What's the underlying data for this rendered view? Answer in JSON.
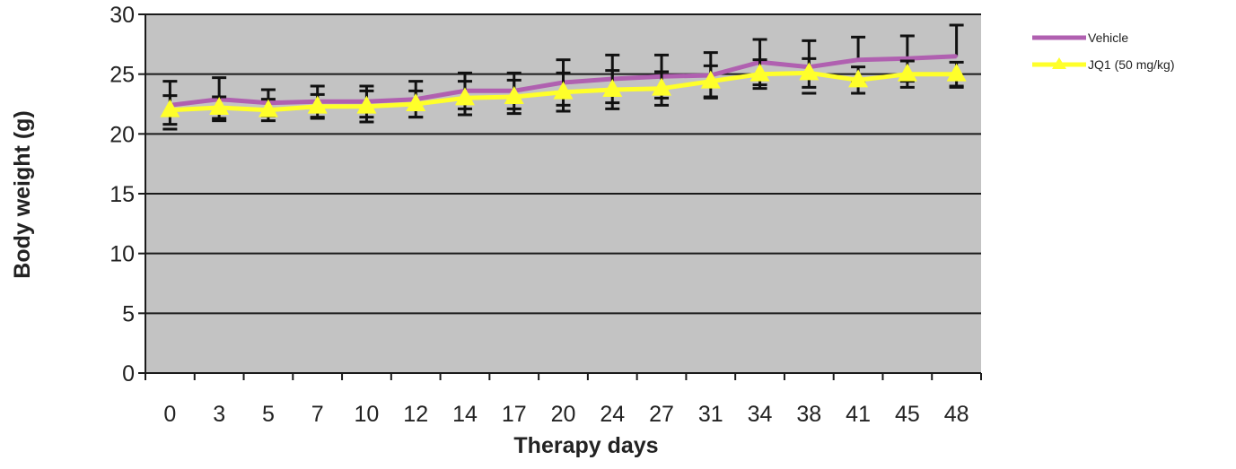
{
  "chart_data": {
    "type": "line",
    "title": "",
    "xlabel": "Therapy days",
    "ylabel": "Body weight (g)",
    "categories": [
      "0",
      "3",
      "5",
      "7",
      "10",
      "12",
      "14",
      "17",
      "20",
      "24",
      "27",
      "31",
      "34",
      "38",
      "41",
      "45",
      "48"
    ],
    "ylim": [
      0,
      30
    ],
    "yticks": [
      "0",
      "5",
      "10",
      "15",
      "20",
      "25",
      "30"
    ],
    "grid": true,
    "legend_position": "right",
    "series": [
      {
        "name": "Vehicle",
        "color": "#b060b0",
        "marker": "none",
        "values": [
          22.4,
          22.9,
          22.6,
          22.7,
          22.7,
          22.9,
          23.6,
          23.6,
          24.3,
          24.6,
          24.8,
          24.9,
          26.0,
          25.6,
          26.2,
          26.3,
          26.5
        ],
        "error": [
          2.0,
          1.8,
          1.1,
          1.3,
          1.3,
          1.5,
          1.5,
          1.5,
          1.9,
          2.0,
          1.8,
          1.9,
          1.9,
          2.2,
          1.9,
          1.9,
          2.6
        ]
      },
      {
        "name": "JQ1 (50 mg/kg)",
        "color": "#ffff2a",
        "marker": "triangle",
        "values": [
          22.0,
          22.2,
          22.0,
          22.3,
          22.3,
          22.5,
          23.0,
          23.1,
          23.5,
          23.7,
          23.8,
          24.4,
          25.0,
          25.1,
          24.5,
          25.0,
          25.0
        ],
        "error": [
          1.2,
          0.9,
          0.9,
          1.0,
          1.3,
          1.1,
          1.4,
          1.4,
          1.6,
          1.6,
          1.4,
          1.3,
          1.2,
          1.2,
          1.1,
          1.1,
          1.0
        ]
      }
    ]
  }
}
